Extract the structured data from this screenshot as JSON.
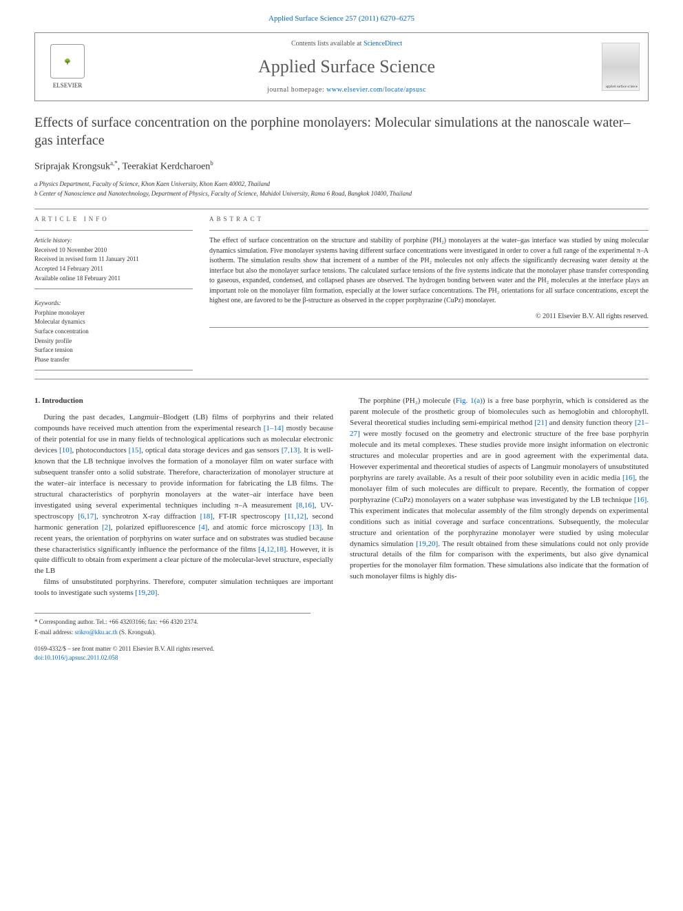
{
  "top_ref": "Applied Surface Science 257 (2011) 6270–6275",
  "header": {
    "contents_prefix": "Contents lists available at ",
    "contents_link": "ScienceDirect",
    "journal": "Applied Surface Science",
    "homepage_prefix": "journal homepage: ",
    "homepage_url": "www.elsevier.com/locate/apsusc",
    "publisher": "ELSEVIER"
  },
  "title": "Effects of surface concentration on the porphine monolayers: Molecular simulations at the nanoscale water–gas interface",
  "authors_html": "Sriprajak Krongsuk",
  "author_a_sup": "a,",
  "author_a_star": "*",
  "author_b": ", Teerakiat Kerdcharoen",
  "author_b_sup": "b",
  "affiliations": {
    "a": "a Physics Department, Faculty of Science, Khon Kaen University, Khon Kaen 40002, Thailand",
    "b": "b Center of Nanoscience and Nanotechnology, Department of Physics, Faculty of Science, Mahidol University, Rama 6 Road, Bangkok 10400, Thailand"
  },
  "info_head": "article info",
  "abstract_head": "abstract",
  "history": {
    "head": "Article history:",
    "received": "Received 10 November 2010",
    "revised": "Received in revised form 11 January 2011",
    "accepted": "Accepted 14 February 2011",
    "online": "Available online 18 February 2011"
  },
  "keywords": {
    "head": "Keywords:",
    "items": [
      "Porphine monolayer",
      "Molecular dynamics",
      "Surface concentration",
      "Density profile",
      "Surface tension",
      "Phase transfer"
    ]
  },
  "abstract": "The effect of surface concentration on the structure and stability of porphine (PH₂) monolayers at the water–gas interface was studied by using molecular dynamics simulation. Five monolayer systems having different surface concentrations were investigated in order to cover a full range of the experimental π–A isotherm. The simulation results show that increment of a number of the PH₂ molecules not only affects the significantly decreasing water density at the interface but also the monolayer surface tensions. The calculated surface tensions of the five systems indicate that the monolayer phase transfer corresponding to gaseous, expanded, condensed, and collapsed phases are observed. The hydrogen bonding between water and the PH₂ molecules at the interface plays an important role on the monolayer film formation, especially at the lower surface concentrations. The PH₂ orientations for all surface concentrations, except the highest one, are favored to be the β-structure as observed in the copper porphyrazine (CuPz) monolayer.",
  "copyright": "© 2011 Elsevier B.V. All rights reserved.",
  "section1_head": "1. Introduction",
  "para1": "During the past decades, Langmuir–Blodgett (LB) films of porphyrins and their related compounds have received much attention from the experimental research [1–14] mostly because of their potential for use in many fields of technological applications such as molecular electronic devices [10], photoconductors [15], optical data storage devices and gas sensors [7,13]. It is well-known that the LB technique involves the formation of a monolayer film on water surface with subsequent transfer onto a solid substrate. Therefore, characterization of monolayer structure at the water–air interface is necessary to provide information for fabricating the LB films. The structural characteristics of porphyrin monolayers at the water–air interface have been investigated using several experimental techniques including π–A measurement [8,16], UV-spectroscopy [6,17], synchrotron X-ray diffraction [18], FT-IR spectroscopy [11,12], second harmonic generation [2], polarized epifluorescence [4], and atomic force microscopy [13]. In recent years, the orientation of porphyrins on water surface and on substrates was studied because these characteristics significantly influence the performance of the films [4,12,18]. However, it is quite difficult to obtain from experiment a clear picture of the molecular-level structure, especially the LB",
  "para2": "films of unsubstituted porphyrins. Therefore, computer simulation techniques are important tools to investigate such systems [19,20].",
  "para3": "The porphine (PH₂) molecule (Fig. 1(a)) is a free base porphyrin, which is considered as the parent molecule of the prosthetic group of biomolecules such as hemoglobin and chlorophyll. Several theoretical studies including semi-empirical method [21] and density function theory [21–27] were mostly focused on the geometry and electronic structure of the free base porphyrin molecule and its metal complexes. These studies provide more insight information on electronic structures and molecular properties and are in good agreement with the experimental data. However experimental and theoretical studies of aspects of Langmuir monolayers of unsubstituted porphyrins are rarely available. As a result of their poor solubility even in acidic media [16], the monolayer film of such molecules are difficult to prepare. Recently, the formation of copper porphyrazine (CuPz) monolayers on a water subphase was investigated by the LB technique [16]. This experiment indicates that molecular assembly of the film strongly depends on experimental conditions such as initial coverage and surface concentrations. Subsequently, the molecular structure and orientation of the porphyrazine monolayer were studied by using molecular dynamics simulation [19,20]. The result obtained from these simulations could not only provide structural details of the film for comparison with the experiments, but also give dynamical properties for the monolayer film formation. These simulations also indicate that the formation of such monolayer films is highly dis-",
  "corr": {
    "line1": "* Corresponding author. Tel.: +66 43203166; fax: +66 4320 2374.",
    "line2_label": "E-mail address: ",
    "line2_email": "srikro@kku.ac.th",
    "line2_suffix": " (S. Krongsuk)."
  },
  "bottom": {
    "issn": "0169-4332/$ – see front matter © 2011 Elsevier B.V. All rights reserved.",
    "doi": "doi:10.1016/j.apsusc.2011.02.058"
  },
  "colors": {
    "link": "#0066cc",
    "text": "#333333",
    "rule": "#888888"
  }
}
